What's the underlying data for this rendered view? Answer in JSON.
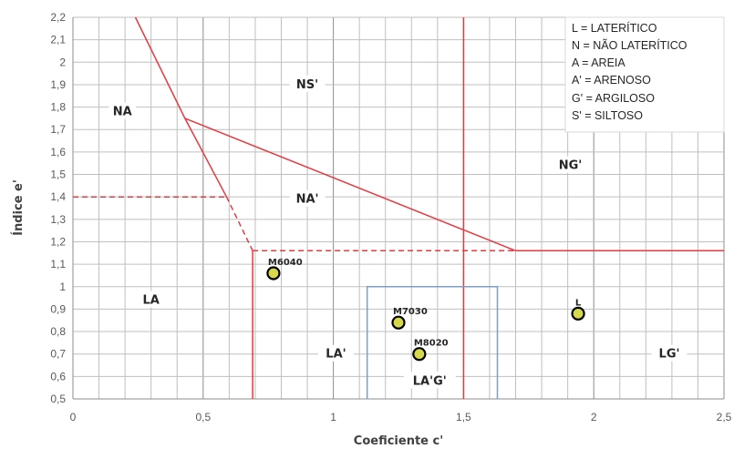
{
  "chart_data": {
    "type": "scatter",
    "xlabel": "Coeficiente c'",
    "ylabel": "Índice e'",
    "xlim": [
      0,
      2.5
    ],
    "ylim": [
      0.5,
      2.2
    ],
    "x_ticks": [
      0,
      0.5,
      1,
      1.5,
      2,
      2.5
    ],
    "x_tick_labels": [
      "0",
      "0,5",
      "1",
      "1,5",
      "2",
      "2,5"
    ],
    "y_ticks": [
      0.5,
      0.6,
      0.7,
      0.8,
      0.9,
      1.0,
      1.1,
      1.2,
      1.3,
      1.4,
      1.5,
      1.6,
      1.7,
      1.8,
      1.9,
      2.0,
      2.1,
      2.2
    ],
    "y_tick_labels": [
      "0,5",
      "0,6",
      "0,7",
      "0,8",
      "0,9",
      "1",
      "1,1",
      "1,2",
      "1,3",
      "1,4",
      "1,5",
      "1,6",
      "1,7",
      "1,8",
      "1,9",
      "2",
      "2,1",
      "2,2"
    ],
    "grid": true,
    "legend_position": "top-right",
    "legend": [
      "L = LATERÍTICO",
      "N = NÃO LATERÍTICO",
      "A = AREIA",
      "A' = ARENOSO",
      "G' = ARGILOSO",
      "S' = SILTOSO"
    ],
    "points": [
      {
        "label": "M6040",
        "x": 0.77,
        "y": 1.06
      },
      {
        "label": "M7030",
        "x": 1.25,
        "y": 0.84
      },
      {
        "label": "M8020",
        "x": 1.33,
        "y": 0.7
      },
      {
        "label": "L",
        "x": 1.94,
        "y": 0.88
      }
    ],
    "regions": [
      {
        "label": "NA",
        "x": 0.19,
        "y": 1.78
      },
      {
        "label": "NS'",
        "x": 0.9,
        "y": 1.9
      },
      {
        "label": "NA'",
        "x": 0.9,
        "y": 1.39
      },
      {
        "label": "NG'",
        "x": 1.91,
        "y": 1.54
      },
      {
        "label": "LA",
        "x": 0.3,
        "y": 0.94
      },
      {
        "label": "LA'",
        "x": 1.01,
        "y": 0.7
      },
      {
        "label": "LA'G'",
        "x": 1.37,
        "y": 0.58
      },
      {
        "label": "LG'",
        "x": 2.29,
        "y": 0.7
      }
    ],
    "boundary_lines": [
      {
        "style": "solid",
        "color": "#e8393f",
        "points": [
          [
            0.24,
            2.2
          ],
          [
            0.43,
            1.75
          ],
          [
            0.59,
            1.4
          ]
        ]
      },
      {
        "style": "dashed",
        "color": "#e8393f",
        "points": [
          [
            0.59,
            1.4
          ],
          [
            0.69,
            1.16
          ]
        ]
      },
      {
        "style": "dashed",
        "color": "#e8393f",
        "points": [
          [
            0.0,
            1.4
          ],
          [
            0.59,
            1.4
          ]
        ]
      },
      {
        "style": "solid",
        "color": "#e8393f",
        "points": [
          [
            0.43,
            1.75
          ],
          [
            1.7,
            1.16
          ]
        ]
      },
      {
        "style": "dashed",
        "color": "#e8393f",
        "points": [
          [
            0.69,
            1.16
          ],
          [
            1.7,
            1.16
          ]
        ]
      },
      {
        "style": "solid",
        "color": "#e8393f",
        "points": [
          [
            1.7,
            1.16
          ],
          [
            2.5,
            1.16
          ]
        ]
      },
      {
        "style": "solid",
        "color": "#e8393f",
        "points": [
          [
            0.69,
            1.16
          ],
          [
            0.69,
            0.5
          ]
        ]
      },
      {
        "style": "solid",
        "color": "#e8393f",
        "points": [
          [
            1.5,
            2.2
          ],
          [
            1.5,
            0.5
          ]
        ]
      },
      {
        "style": "solid",
        "color": "#7f9fc6",
        "points": [
          [
            1.13,
            0.5
          ],
          [
            1.13,
            1.0
          ],
          [
            1.63,
            1.0
          ],
          [
            1.63,
            0.5
          ]
        ]
      }
    ],
    "colors": {
      "boundary": "#e8393f",
      "box": "#7f9fc6",
      "grid": "#bfbfbf",
      "marker_fill": "#d6d84a",
      "marker_edge": "#000000"
    }
  }
}
